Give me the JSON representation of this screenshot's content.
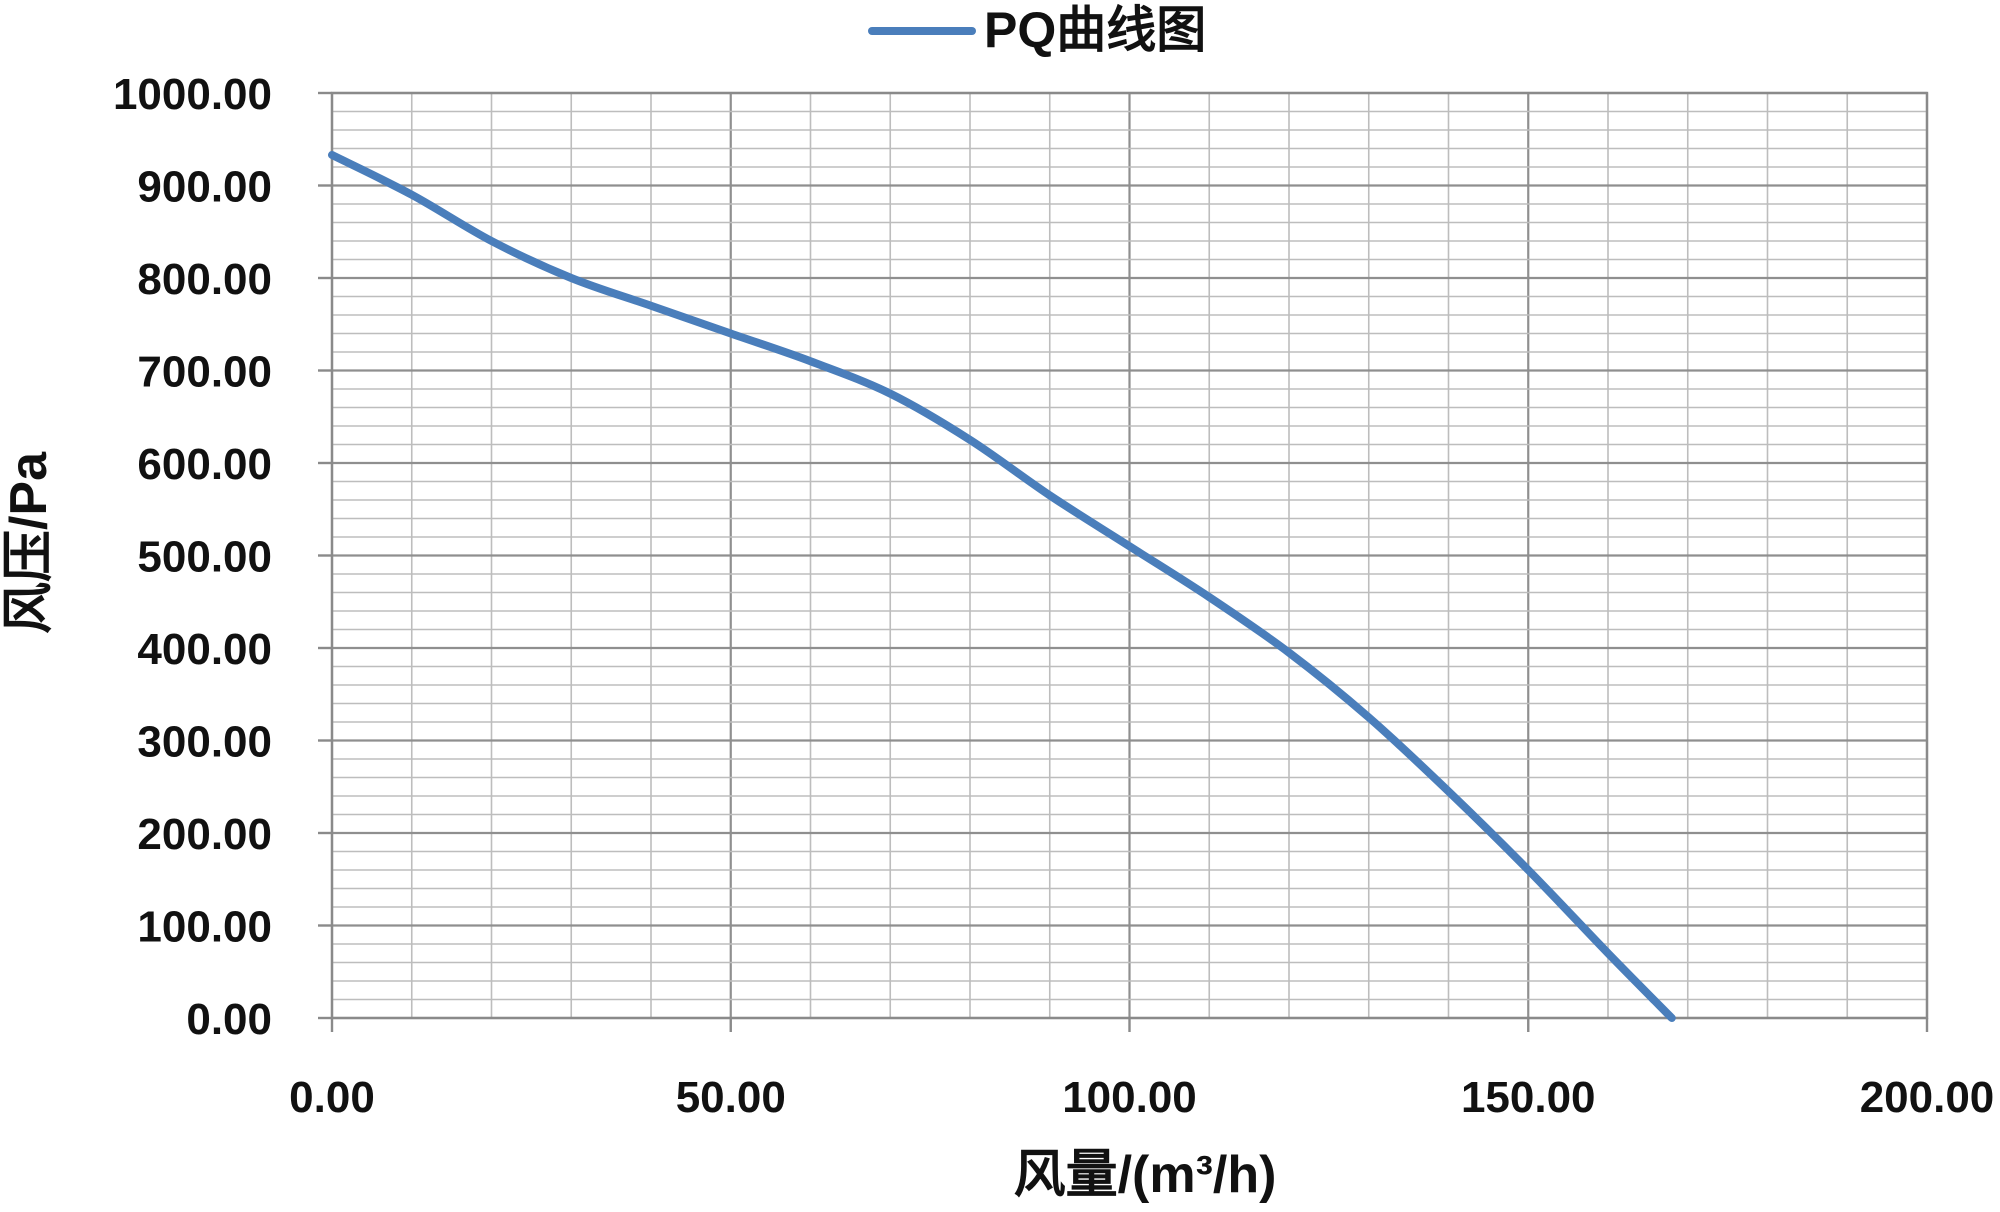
{
  "chart_data": {
    "type": "line",
    "title": "",
    "xlabel": "风量/(m³/h)",
    "ylabel": "风压/Pa",
    "xlim": [
      0,
      200
    ],
    "ylim": [
      0,
      1000
    ],
    "x_ticks": [
      "0.00",
      "50.00",
      "100.00",
      "150.00",
      "200.00"
    ],
    "y_ticks": [
      "0.00",
      "100.00",
      "200.00",
      "300.00",
      "400.00",
      "500.00",
      "600.00",
      "700.00",
      "800.00",
      "900.00",
      "1000.00"
    ],
    "x_minor_step": 10,
    "y_minor_step": 20,
    "grid": true,
    "legend_position": "top-center",
    "series": [
      {
        "name": "PQ曲线图",
        "color": "#4a7ebb",
        "x": [
          0,
          10,
          20,
          30,
          40,
          50,
          60,
          70,
          80,
          90,
          100,
          110,
          120,
          130,
          140,
          150,
          160,
          168
        ],
        "y": [
          933,
          890,
          840,
          800,
          770,
          740,
          710,
          675,
          625,
          565,
          510,
          455,
          395,
          325,
          245,
          160,
          70,
          0
        ]
      }
    ]
  }
}
